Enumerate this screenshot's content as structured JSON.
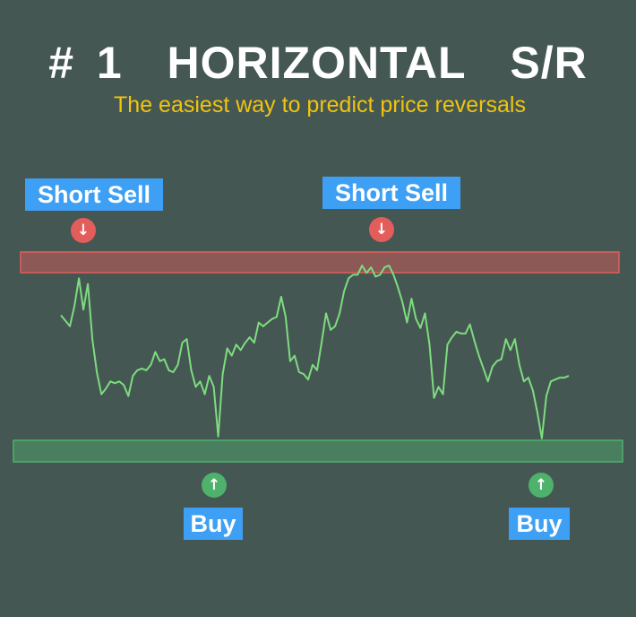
{
  "header": {
    "title": "# 1  HORIZONTAL  S/R",
    "subtitle": "The easiest way to predict price reversals"
  },
  "labels": {
    "short_sell_left": "Short Sell",
    "short_sell_right": "Short Sell",
    "buy_left": "Buy",
    "buy_right": "Buy"
  },
  "icons": {
    "sell_arrow": "↓",
    "buy_arrow": "↑",
    "sell_arrow_name": "arrow-down-icon",
    "buy_arrow_name": "arrow-up-icon"
  },
  "colors": {
    "background": "#455753",
    "title": "#ffffff",
    "subtitle": "#f1c40f",
    "label_bg": "#3ea0f4",
    "resistance_zone": "#e35d5b",
    "support_zone": "#4eb16c",
    "price_line": "#7ddc7f"
  },
  "chart_data": {
    "type": "line",
    "title": "",
    "xlabel": "",
    "ylabel": "",
    "axes_visible": false,
    "grid": false,
    "legend": "none",
    "ylim": [
      0,
      100
    ],
    "zones": [
      {
        "name": "resistance",
        "low": 90,
        "high": 100
      },
      {
        "name": "support",
        "low": 0,
        "high": 10
      }
    ],
    "series": [
      {
        "values": [
          71,
          68,
          65,
          76,
          91,
          74,
          88,
          58,
          40,
          28,
          31,
          35,
          34,
          35,
          33,
          27,
          38,
          41,
          42,
          41,
          44,
          51,
          46,
          47,
          41,
          40,
          44,
          56,
          58,
          41,
          32,
          35,
          28,
          38,
          32,
          5,
          39,
          53,
          49,
          55,
          52,
          56,
          59,
          56,
          67,
          65,
          67,
          69,
          70,
          81,
          70,
          46,
          49,
          40,
          39,
          36,
          44,
          41,
          56,
          72,
          63,
          65,
          72,
          84,
          91,
          93,
          93,
          98,
          94,
          97,
          92,
          93,
          97,
          98,
          93,
          86,
          78,
          67,
          80,
          69,
          64,
          72,
          55,
          26,
          32,
          28,
          55,
          59,
          62,
          61,
          61,
          66,
          57,
          49,
          42,
          35,
          43,
          46,
          47,
          58,
          52,
          58,
          44,
          35,
          37,
          30,
          18,
          4,
          27,
          35,
          36,
          37,
          37,
          38
        ]
      }
    ],
    "markers": [
      {
        "signal": "Short Sell",
        "point_index": 4,
        "zone": "resistance"
      },
      {
        "signal": "Short Sell",
        "point_index": 67,
        "zone": "resistance"
      },
      {
        "signal": "Buy",
        "point_index": 35,
        "zone": "support"
      },
      {
        "signal": "Buy",
        "point_index": 107,
        "zone": "support"
      }
    ]
  }
}
